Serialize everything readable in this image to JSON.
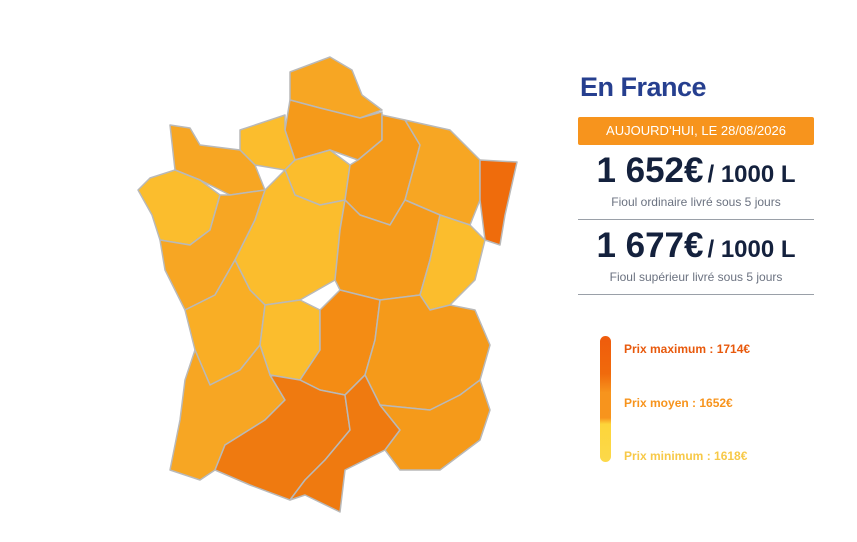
{
  "header": {
    "title": "En France",
    "date": "AUJOURD’HUI, LE 28/08/2026"
  },
  "prices": [
    {
      "price": "1 652€",
      "unit": "/ 1000 L",
      "label": "Fioul ordinaire livré sous 5 jours"
    },
    {
      "price": "1 677€",
      "unit": "/ 1000 L",
      "label": "Fioul supérieur livré sous 5 jours"
    }
  ],
  "legend": [
    "Prix maximum : 1714€",
    "Prix moyen : 1652€",
    "Prix minimum : 1618€"
  ]
}
